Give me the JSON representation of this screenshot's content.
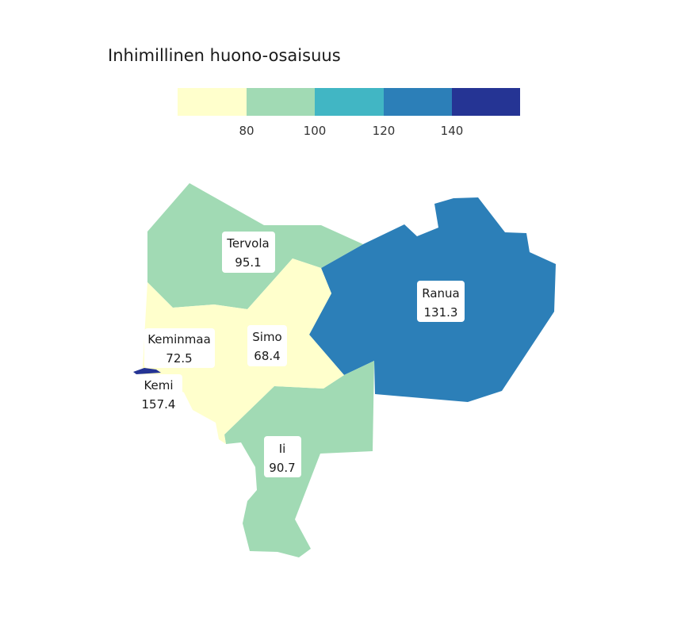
{
  "chart_data": {
    "type": "choropleth",
    "title": "Inhimillinen huono-osaisuus",
    "legend": {
      "placement": "top",
      "bins": [
        {
          "from": null,
          "to": 80,
          "color": "#ffffcc"
        },
        {
          "from": 80,
          "to": 100,
          "color": "#a1dab4"
        },
        {
          "from": 100,
          "to": 120,
          "color": "#41b6c4"
        },
        {
          "from": 120,
          "to": 140,
          "color": "#2c7fb8"
        },
        {
          "from": 140,
          "to": null,
          "color": "#253494"
        }
      ],
      "tick_labels": [
        "80",
        "100",
        "120",
        "140"
      ]
    },
    "regions": [
      {
        "name": "Tervola",
        "value": 95.1,
        "value_label": "95.1",
        "color": "#a1dab4"
      },
      {
        "name": "Ranua",
        "value": 131.3,
        "value_label": "131.3",
        "color": "#2c7fb8"
      },
      {
        "name": "Keminmaa",
        "value": 72.5,
        "value_label": "72.5",
        "color": "#ffffcc"
      },
      {
        "name": "Simo",
        "value": 68.4,
        "value_label": "68.4",
        "color": "#ffffcc"
      },
      {
        "name": "Kemi",
        "value": 157.4,
        "value_label": "157.4",
        "color": "#253494"
      },
      {
        "name": "Ii",
        "value": 90.7,
        "value_label": "90.7",
        "color": "#a1dab4"
      }
    ]
  }
}
